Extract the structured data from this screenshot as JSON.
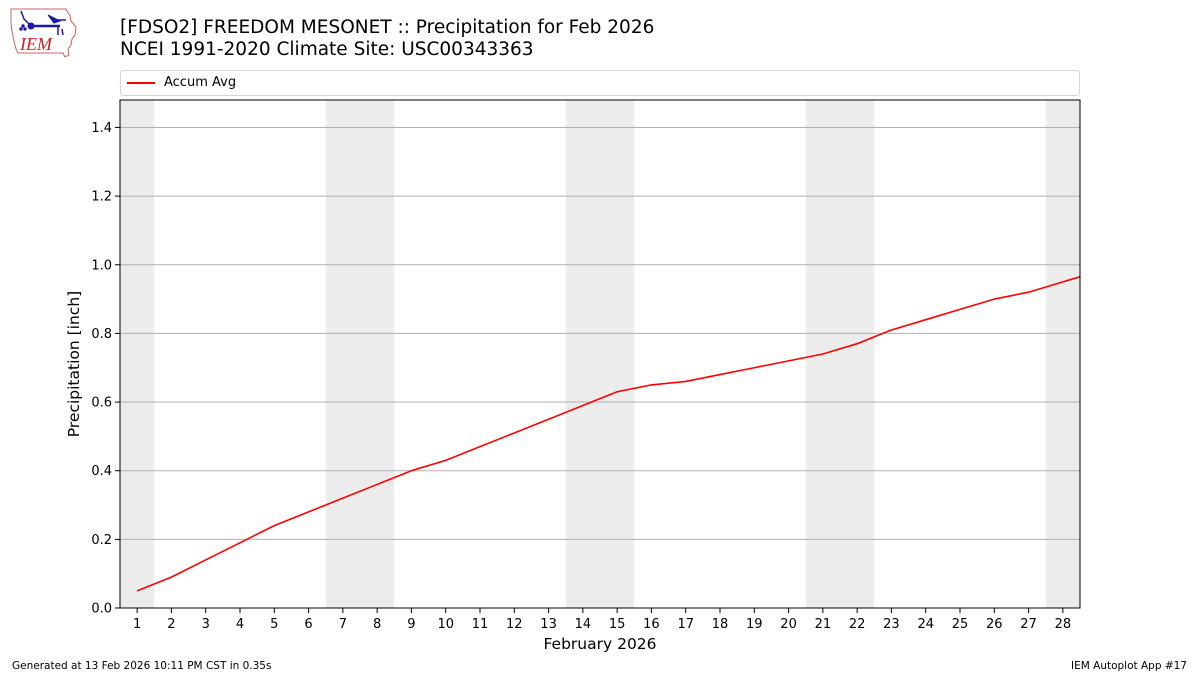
{
  "header": {
    "title_line1": "[FDSO2] FREEDOM MESONET :: Precipitation for Feb 2026",
    "title_line2": "NCEI 1991-2020 Climate Site: USC00343363",
    "logo_text": "IEM"
  },
  "legend": {
    "items": [
      {
        "label": "Accum Avg",
        "color": "#ff0000"
      }
    ]
  },
  "footer": {
    "left": "Generated at 13 Feb 2026 10:11 PM CST in 0.35s",
    "right": "IEM Autoplot App #17"
  },
  "colors": {
    "line": "#ff0000",
    "weekend_shade": "#ececec",
    "grid": "#b0b0b0",
    "axis": "#000000"
  },
  "chart_data": {
    "type": "line",
    "title": "[FDSO2] FREEDOM MESONET :: Precipitation for Feb 2026",
    "subtitle": "NCEI 1991-2020 Climate Site: USC00343363",
    "xlabel": "February 2026",
    "ylabel": "Precipitation [inch]",
    "xlim": [
      0.5,
      28.5
    ],
    "ylim": [
      0,
      1.48
    ],
    "yticks": [
      0.0,
      0.2,
      0.4,
      0.6,
      0.8,
      1.0,
      1.2,
      1.4
    ],
    "ytick_labels": [
      "0.0",
      "0.2",
      "0.4",
      "0.6",
      "0.8",
      "1.0",
      "1.2",
      "1.4"
    ],
    "xticks": [
      1,
      2,
      3,
      4,
      5,
      6,
      7,
      8,
      9,
      10,
      11,
      12,
      13,
      14,
      15,
      16,
      17,
      18,
      19,
      20,
      21,
      22,
      23,
      24,
      25,
      26,
      27,
      28
    ],
    "grid": "y",
    "legend_position": "top",
    "weekend_spans": [
      [
        0.5,
        1.5
      ],
      [
        6.5,
        8.5
      ],
      [
        13.5,
        15.5
      ],
      [
        20.5,
        22.5
      ],
      [
        27.5,
        28.5
      ]
    ],
    "series": [
      {
        "name": "Accum Avg",
        "color": "#ff0000",
        "x": [
          1,
          2,
          3,
          4,
          5,
          6,
          7,
          8,
          9,
          10,
          11,
          12,
          13,
          14,
          15,
          16,
          17,
          18,
          19,
          20,
          21,
          22,
          23,
          24,
          25,
          26,
          27,
          28,
          29
        ],
        "values": [
          0.05,
          0.09,
          0.14,
          0.19,
          0.24,
          0.28,
          0.32,
          0.36,
          0.4,
          0.43,
          0.47,
          0.51,
          0.55,
          0.59,
          0.63,
          0.65,
          0.66,
          0.68,
          0.7,
          0.72,
          0.74,
          0.77,
          0.81,
          0.84,
          0.87,
          0.9,
          0.92,
          0.95,
          0.98
        ]
      }
    ]
  }
}
